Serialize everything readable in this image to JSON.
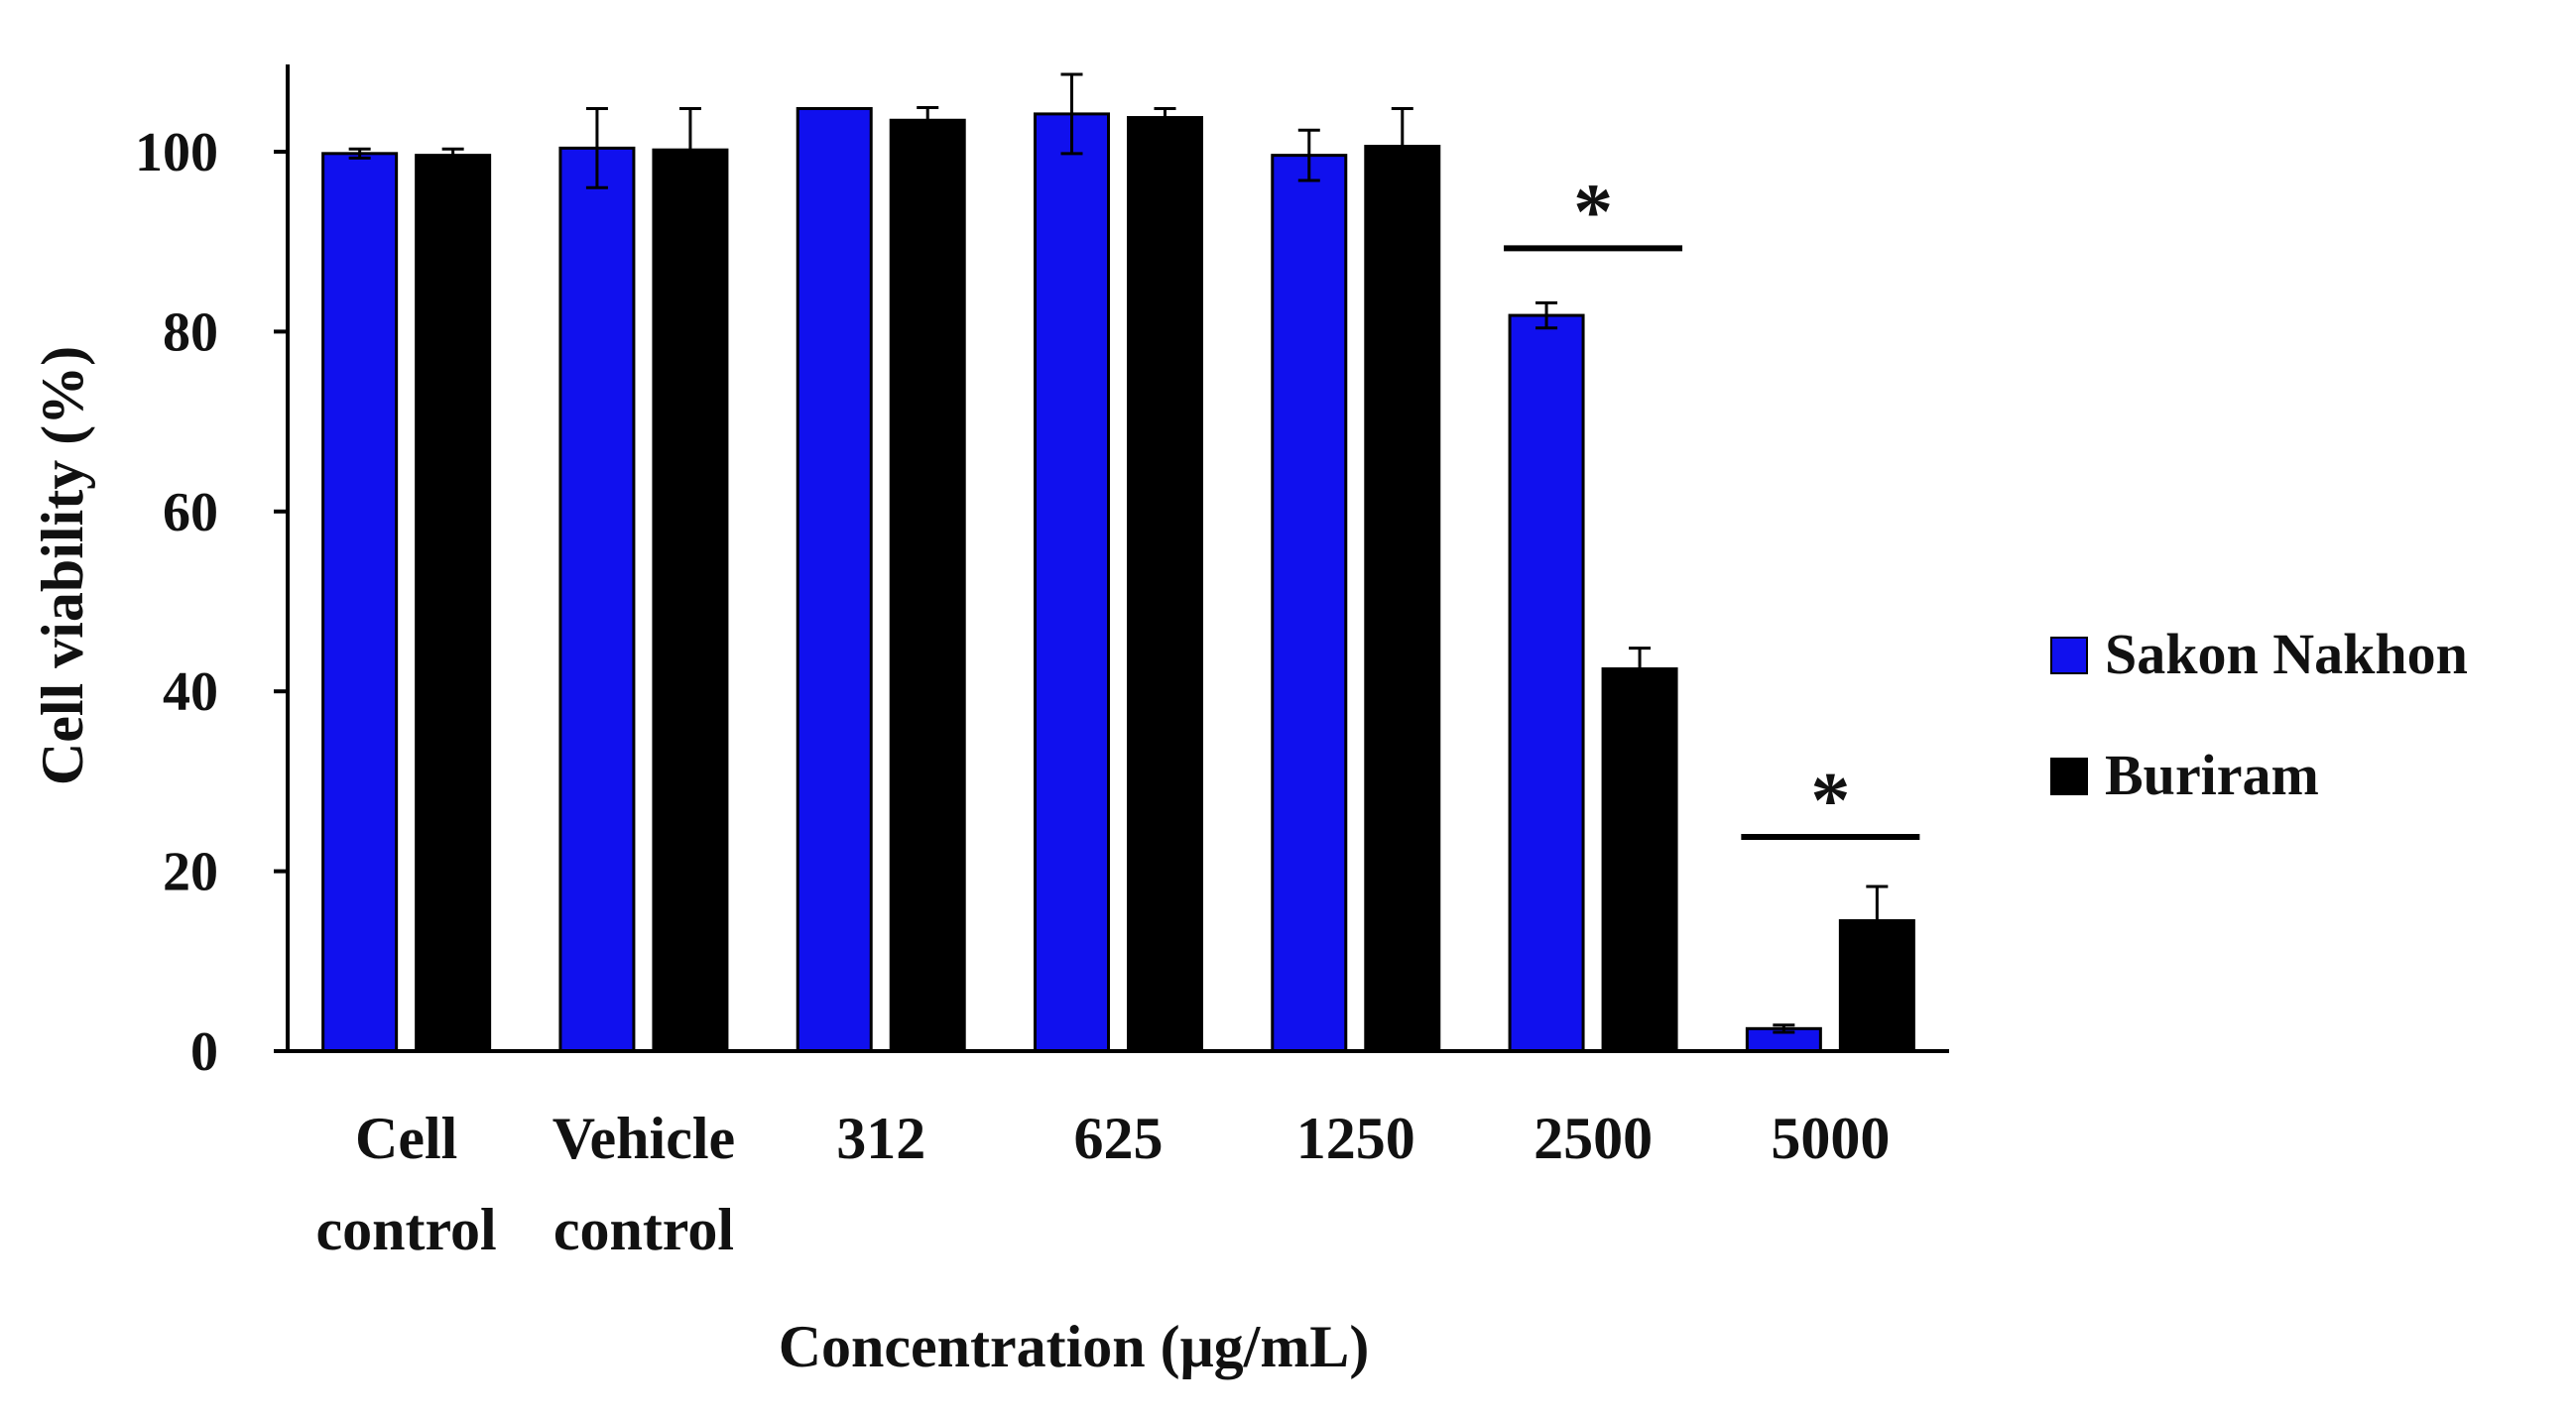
{
  "chart_data": {
    "type": "bar",
    "title": "",
    "xlabel": "Concentration (μg/mL)",
    "ylabel": "Cell viability (%)",
    "ylim": [
      0,
      110
    ],
    "yticks": [
      0,
      20,
      40,
      60,
      80,
      100
    ],
    "categories": [
      {
        "lines": [
          "Cell",
          "control"
        ]
      },
      {
        "lines": [
          "Vehicle",
          "control"
        ]
      },
      {
        "lines": [
          "312"
        ]
      },
      {
        "lines": [
          "625"
        ]
      },
      {
        "lines": [
          "1250"
        ]
      },
      {
        "lines": [
          "2500"
        ]
      },
      {
        "lines": [
          "5000"
        ]
      }
    ],
    "series": [
      {
        "name": "Sakon Nakhon",
        "color": "#1010ee",
        "values": [
          99.8,
          100.4,
          104.8,
          104.2,
          99.6,
          81.8,
          2.5
        ],
        "errors": [
          0.5,
          4.4,
          0.0,
          4.4,
          2.8,
          1.4,
          0.4
        ]
      },
      {
        "name": "Buriram",
        "color": "#000000",
        "values": [
          99.6,
          100.2,
          103.5,
          103.8,
          100.6,
          42.5,
          14.5
        ],
        "errors": [
          0.7,
          4.6,
          1.4,
          1.0,
          4.2,
          2.3,
          3.8
        ]
      }
    ],
    "significance": [
      {
        "category_index": 5,
        "label": "*"
      },
      {
        "category_index": 6,
        "label": "*"
      }
    ],
    "legend_position": "right",
    "grid": false
  }
}
